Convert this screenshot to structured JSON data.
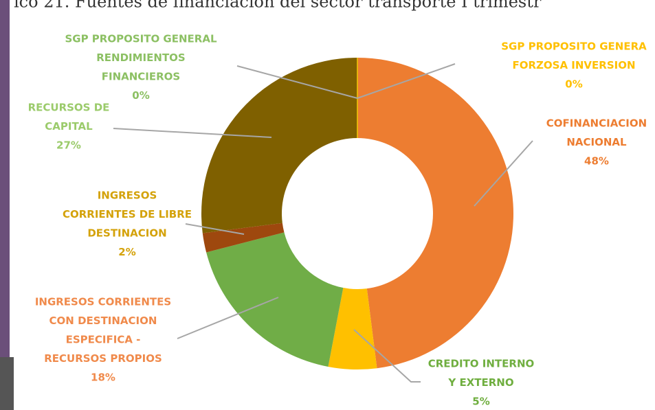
{
  "chart_data": {
    "type": "donut",
    "title": "ico 21. Fuentes de financiación del sector transporte I trimestr",
    "categories": [
      [
        "COFINANCIACION",
        "NACIONAL"
      ],
      [
        "CREDITO INTERNO",
        "Y EXTERNO"
      ],
      [
        "INGRESOS CORRIENTES",
        "CON DESTINACION",
        "ESPECIFICA -",
        "RECURSOS PROPIOS"
      ],
      [
        "INGRESOS",
        "CORRIENTES DE LIBRE",
        "DESTINACION"
      ],
      [
        "RECURSOS DE",
        "CAPITAL"
      ],
      [
        "SGP PROPOSITO GENERAL",
        "RENDIMIENTOS",
        "FINANCIEROS"
      ],
      [
        "SGP PROPOSITO GENERA",
        "FORZOSA INVERSION"
      ]
    ],
    "values": [
      48,
      5,
      18,
      2,
      27,
      0,
      0
    ],
    "value_labels": [
      "48%",
      "5%",
      "18%",
      "2%",
      "27%",
      "0%",
      "0%"
    ],
    "colors": [
      "#ED7D31",
      "#FFC000",
      "#70AD47",
      "#9E480E",
      "#7F6000",
      "#70AD47",
      "#FFC000"
    ],
    "label_colors": [
      "#ED7D31",
      "#6FAE3F",
      "#F08A4B",
      "#D4A20A",
      "#9BCB6B",
      "#8CC063",
      "#FFC000"
    ]
  }
}
